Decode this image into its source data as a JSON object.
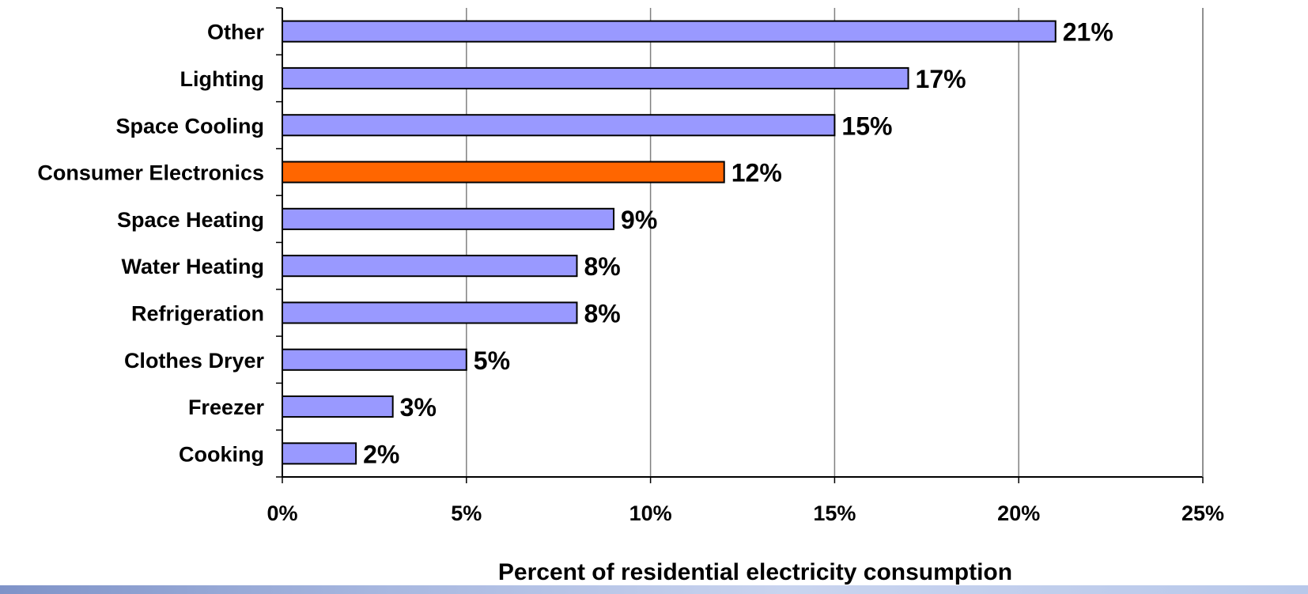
{
  "chart_data": {
    "type": "bar",
    "orientation": "horizontal",
    "categories": [
      "Other",
      "Lighting",
      "Space Cooling",
      "Consumer Electronics",
      "Space Heating",
      "Water Heating",
      "Refrigeration",
      "Clothes Dryer",
      "Freezer",
      "Cooking"
    ],
    "values": [
      21,
      17,
      15,
      12,
      9,
      8,
      8,
      5,
      3,
      2
    ],
    "data_labels": [
      "21%",
      "17%",
      "15%",
      "12%",
      "9%",
      "8%",
      "8%",
      "5%",
      "3%",
      "2%"
    ],
    "highlight_index": 3,
    "colors": {
      "bar": "#9999ff",
      "highlight": "#ff6600",
      "outline": "#000000",
      "grid": "#808080"
    },
    "xlim": [
      0,
      25
    ],
    "xticks": [
      0,
      5,
      10,
      15,
      20,
      25
    ],
    "xtick_labels": [
      "0%",
      "5%",
      "10%",
      "15%",
      "20%",
      "25%"
    ],
    "xlabel": "Percent of residential electricity consumption",
    "grid": "vertical"
  }
}
